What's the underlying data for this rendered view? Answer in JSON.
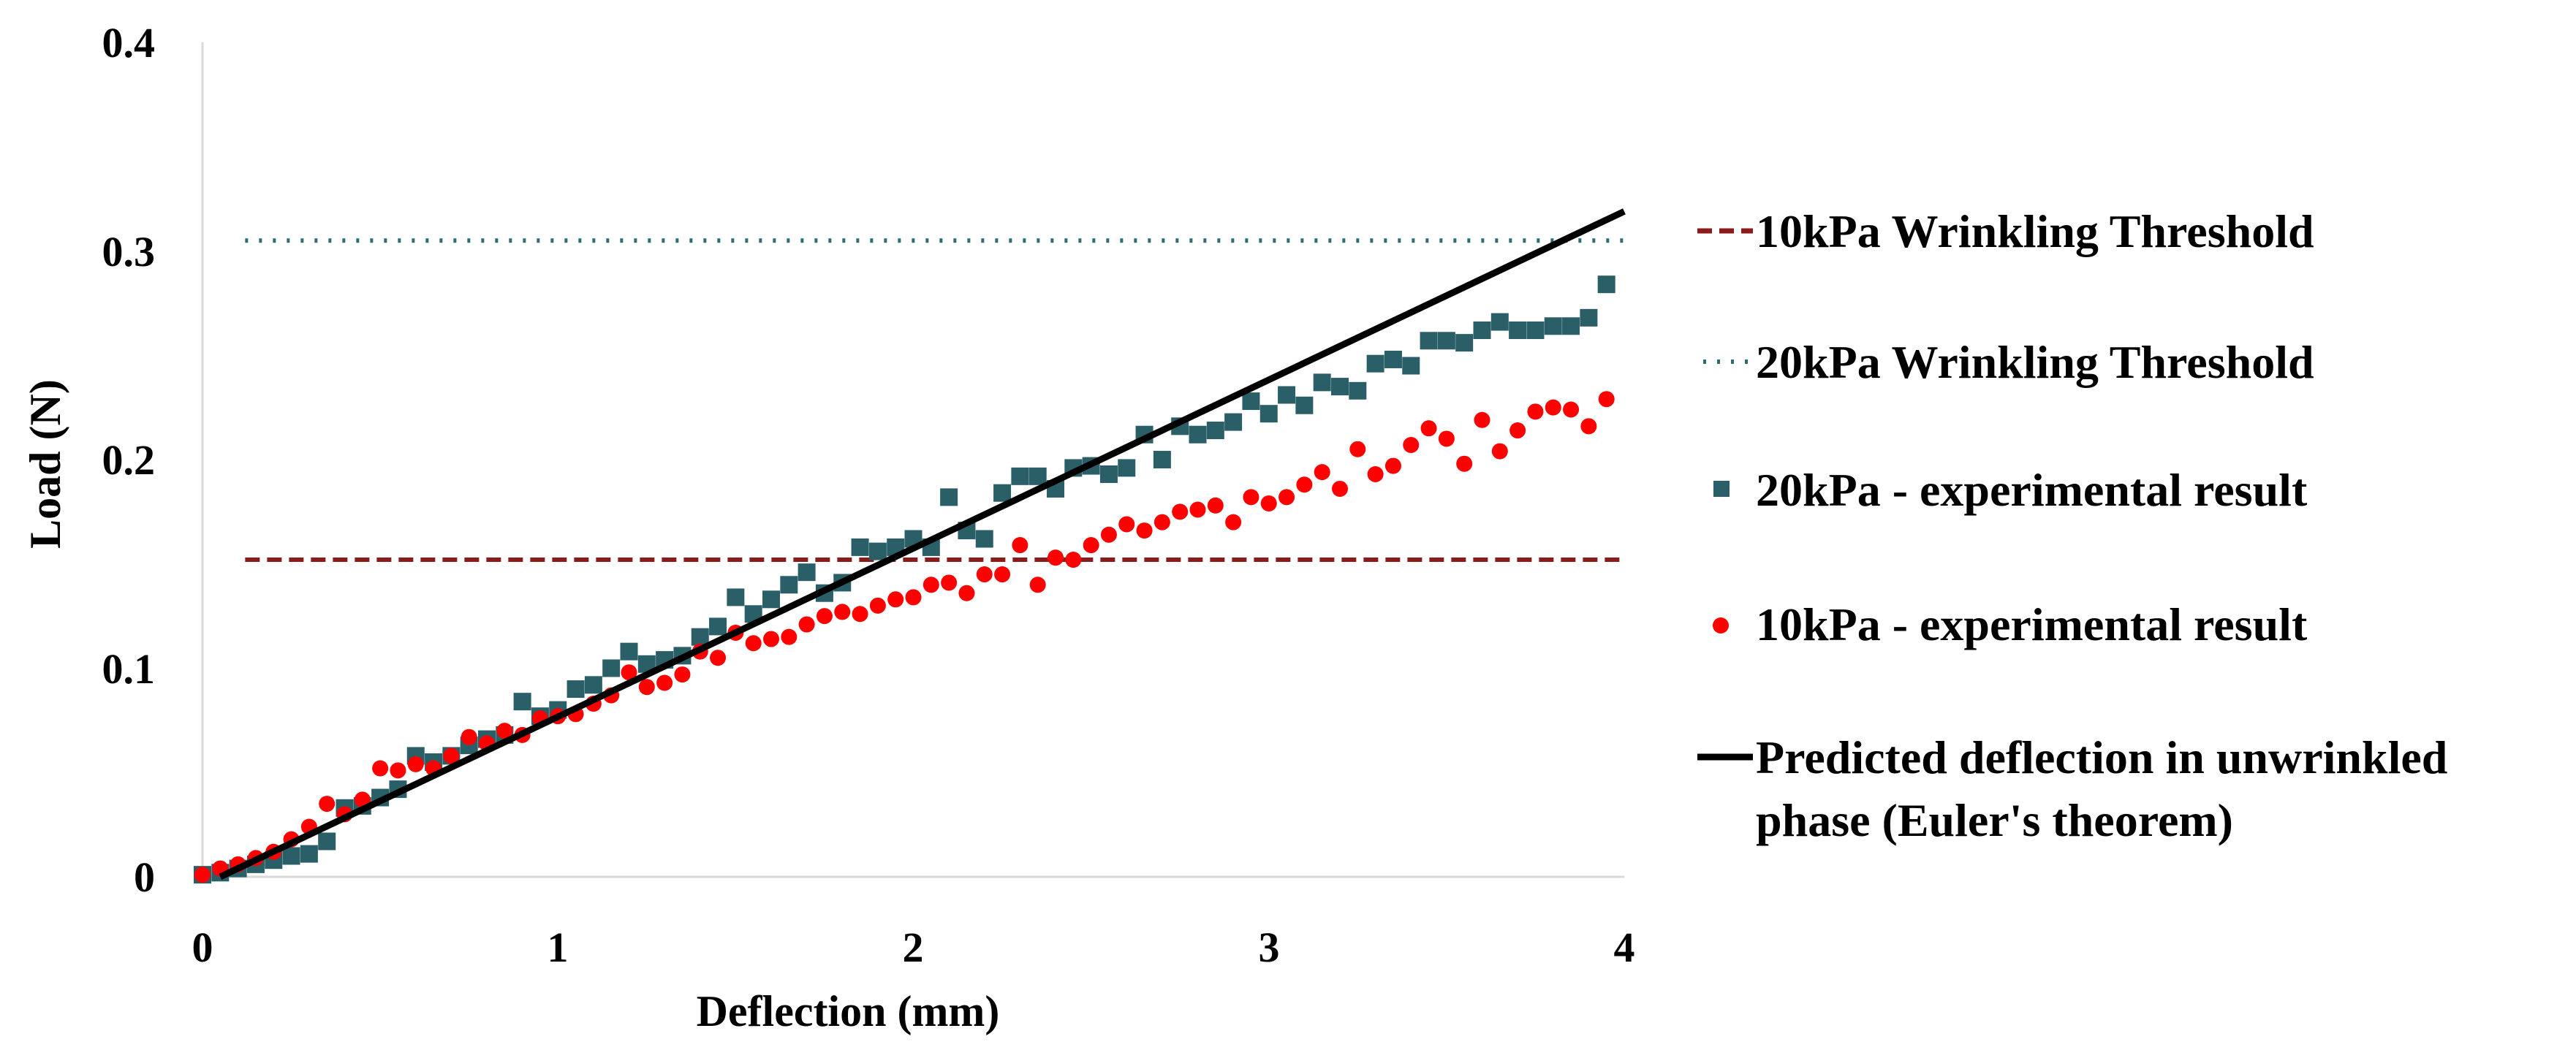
{
  "chart_data": {
    "type": "scatter",
    "title": "",
    "xlabel": "Deflection (mm)",
    "ylabel": "Load (N)",
    "xlim": [
      0,
      4
    ],
    "ylim": [
      0,
      0.4
    ],
    "x_ticks": [
      "0",
      "1",
      "2",
      "3",
      "4"
    ],
    "y_ticks": [
      "0",
      "0.1",
      "0.2",
      "0.3",
      "0.4"
    ],
    "grid": false,
    "legend_position": "right",
    "colors": {
      "threshold_10": "#8b1a1a",
      "threshold_20": "#2e6b75",
      "exp_20": "#2b5f68",
      "exp_10": "#ff0000",
      "predicted": "#000000"
    },
    "series": [
      {
        "name": "10kPa Wrinkling Threshold",
        "kind": "hline-dashed",
        "y": 0.152
      },
      {
        "name": "20kPa Wrinkling Threshold",
        "kind": "hline-dotted",
        "y": 0.305
      },
      {
        "name": "20kPa - experimental result",
        "kind": "square",
        "points": [
          [
            0.0,
            0.001
          ],
          [
            0.05,
            0.002
          ],
          [
            0.1,
            0.004
          ],
          [
            0.15,
            0.006
          ],
          [
            0.2,
            0.008
          ],
          [
            0.25,
            0.01
          ],
          [
            0.3,
            0.011
          ],
          [
            0.35,
            0.017
          ],
          [
            0.4,
            0.033
          ],
          [
            0.45,
            0.034
          ],
          [
            0.5,
            0.038
          ],
          [
            0.55,
            0.042
          ],
          [
            0.6,
            0.058
          ],
          [
            0.65,
            0.055
          ],
          [
            0.7,
            0.058
          ],
          [
            0.75,
            0.063
          ],
          [
            0.8,
            0.066
          ],
          [
            0.85,
            0.068
          ],
          [
            0.9,
            0.084
          ],
          [
            0.95,
            0.077
          ],
          [
            1.0,
            0.08
          ],
          [
            1.05,
            0.09
          ],
          [
            1.1,
            0.092
          ],
          [
            1.15,
            0.1
          ],
          [
            1.2,
            0.108
          ],
          [
            1.25,
            0.102
          ],
          [
            1.3,
            0.104
          ],
          [
            1.35,
            0.106
          ],
          [
            1.4,
            0.115
          ],
          [
            1.45,
            0.12
          ],
          [
            1.5,
            0.134
          ],
          [
            1.55,
            0.126
          ],
          [
            1.6,
            0.133
          ],
          [
            1.65,
            0.14
          ],
          [
            1.7,
            0.146
          ],
          [
            1.75,
            0.136
          ],
          [
            1.8,
            0.141
          ],
          [
            1.85,
            0.158
          ],
          [
            1.9,
            0.156
          ],
          [
            1.95,
            0.158
          ],
          [
            2.0,
            0.162
          ],
          [
            2.05,
            0.158
          ],
          [
            2.1,
            0.182
          ],
          [
            2.15,
            0.166
          ],
          [
            2.2,
            0.162
          ],
          [
            2.25,
            0.184
          ],
          [
            2.3,
            0.192
          ],
          [
            2.35,
            0.192
          ],
          [
            2.4,
            0.186
          ],
          [
            2.45,
            0.196
          ],
          [
            2.5,
            0.197
          ],
          [
            2.55,
            0.193
          ],
          [
            2.6,
            0.196
          ],
          [
            2.65,
            0.212
          ],
          [
            2.7,
            0.2
          ],
          [
            2.75,
            0.216
          ],
          [
            2.8,
            0.212
          ],
          [
            2.85,
            0.214
          ],
          [
            2.9,
            0.218
          ],
          [
            2.95,
            0.228
          ],
          [
            3.0,
            0.222
          ],
          [
            3.05,
            0.231
          ],
          [
            3.1,
            0.226
          ],
          [
            3.15,
            0.237
          ],
          [
            3.2,
            0.235
          ],
          [
            3.25,
            0.233
          ],
          [
            3.3,
            0.246
          ],
          [
            3.35,
            0.248
          ],
          [
            3.4,
            0.245
          ],
          [
            3.45,
            0.257
          ],
          [
            3.5,
            0.257
          ],
          [
            3.55,
            0.256
          ],
          [
            3.6,
            0.262
          ],
          [
            3.65,
            0.266
          ],
          [
            3.7,
            0.262
          ],
          [
            3.75,
            0.262
          ],
          [
            3.8,
            0.264
          ],
          [
            3.85,
            0.264
          ],
          [
            3.9,
            0.268
          ],
          [
            3.95,
            0.284
          ]
        ]
      },
      {
        "name": "10kPa - experimental result",
        "kind": "circle",
        "points": [
          [
            0.0,
            0.001
          ],
          [
            0.05,
            0.004
          ],
          [
            0.1,
            0.006
          ],
          [
            0.15,
            0.009
          ],
          [
            0.2,
            0.012
          ],
          [
            0.25,
            0.018
          ],
          [
            0.3,
            0.024
          ],
          [
            0.35,
            0.035
          ],
          [
            0.4,
            0.03
          ],
          [
            0.45,
            0.037
          ],
          [
            0.5,
            0.052
          ],
          [
            0.55,
            0.051
          ],
          [
            0.6,
            0.054
          ],
          [
            0.65,
            0.052
          ],
          [
            0.7,
            0.058
          ],
          [
            0.75,
            0.067
          ],
          [
            0.8,
            0.064
          ],
          [
            0.85,
            0.07
          ],
          [
            0.9,
            0.068
          ],
          [
            0.95,
            0.076
          ],
          [
            1.0,
            0.077
          ],
          [
            1.05,
            0.078
          ],
          [
            1.1,
            0.083
          ],
          [
            1.15,
            0.087
          ],
          [
            1.2,
            0.098
          ],
          [
            1.25,
            0.091
          ],
          [
            1.3,
            0.093
          ],
          [
            1.35,
            0.097
          ],
          [
            1.4,
            0.108
          ],
          [
            1.45,
            0.105
          ],
          [
            1.5,
            0.117
          ],
          [
            1.55,
            0.112
          ],
          [
            1.6,
            0.114
          ],
          [
            1.65,
            0.115
          ],
          [
            1.7,
            0.121
          ],
          [
            1.75,
            0.125
          ],
          [
            1.8,
            0.127
          ],
          [
            1.85,
            0.126
          ],
          [
            1.9,
            0.13
          ],
          [
            1.95,
            0.133
          ],
          [
            2.0,
            0.134
          ],
          [
            2.05,
            0.14
          ],
          [
            2.1,
            0.141
          ],
          [
            2.15,
            0.136
          ],
          [
            2.2,
            0.145
          ],
          [
            2.25,
            0.145
          ],
          [
            2.3,
            0.159
          ],
          [
            2.35,
            0.14
          ],
          [
            2.4,
            0.153
          ],
          [
            2.45,
            0.152
          ],
          [
            2.5,
            0.159
          ],
          [
            2.55,
            0.164
          ],
          [
            2.6,
            0.169
          ],
          [
            2.65,
            0.166
          ],
          [
            2.7,
            0.17
          ],
          [
            2.75,
            0.175
          ],
          [
            2.8,
            0.176
          ],
          [
            2.85,
            0.178
          ],
          [
            2.9,
            0.17
          ],
          [
            2.95,
            0.182
          ],
          [
            3.0,
            0.179
          ],
          [
            3.05,
            0.182
          ],
          [
            3.1,
            0.188
          ],
          [
            3.15,
            0.194
          ],
          [
            3.2,
            0.186
          ],
          [
            3.25,
            0.205
          ],
          [
            3.3,
            0.193
          ],
          [
            3.35,
            0.197
          ],
          [
            3.4,
            0.207
          ],
          [
            3.45,
            0.215
          ],
          [
            3.5,
            0.21
          ],
          [
            3.55,
            0.198
          ],
          [
            3.6,
            0.219
          ],
          [
            3.65,
            0.204
          ],
          [
            3.7,
            0.214
          ],
          [
            3.75,
            0.223
          ],
          [
            3.8,
            0.225
          ],
          [
            3.85,
            0.224
          ],
          [
            3.9,
            0.216
          ],
          [
            3.95,
            0.229
          ]
        ]
      },
      {
        "name": "Predicted deflection in unwrinkled phase (Euler's theorem)",
        "kind": "line",
        "legend_lines": [
          "Predicted deflection in unwrinkled",
          "phase (Euler's theorem)"
        ],
        "points": [
          [
            0.05,
            0.0
          ],
          [
            4.0,
            0.319
          ]
        ]
      }
    ]
  }
}
